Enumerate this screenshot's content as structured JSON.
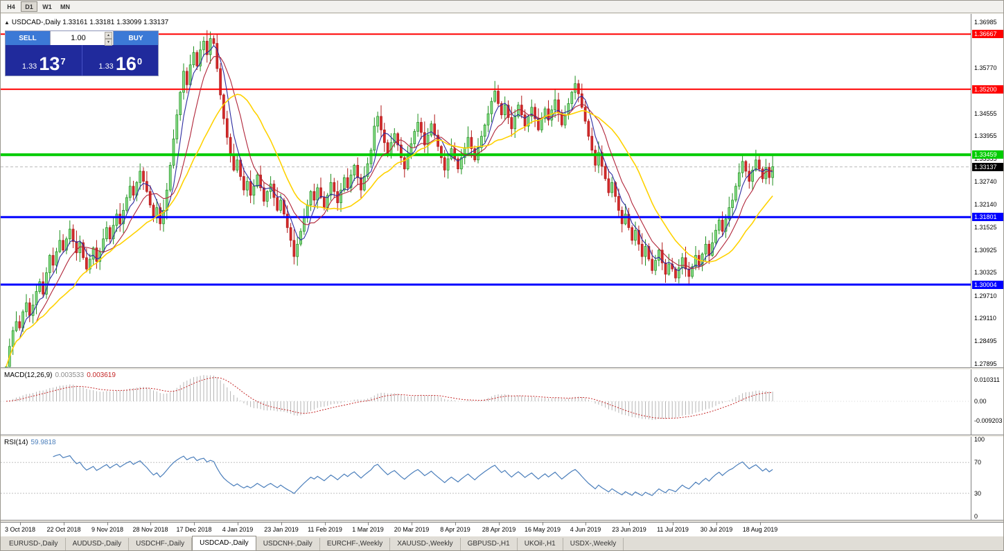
{
  "toolbar": {
    "timeframes": [
      {
        "label": "H4",
        "active": false
      },
      {
        "label": "D1",
        "active": true
      },
      {
        "label": "W1",
        "active": false
      },
      {
        "label": "MN",
        "active": false
      }
    ]
  },
  "chart": {
    "header_text": "USDCAD-,Daily  1.33161 1.33181 1.33099 1.33137",
    "toggle_icon": "▲"
  },
  "trade_widget": {
    "sell_label": "SELL",
    "buy_label": "BUY",
    "volume": "1.00",
    "sell_price": {
      "prefix": "1.33",
      "pips": "13",
      "sup": "7"
    },
    "buy_price": {
      "prefix": "1.33",
      "pips": "16",
      "sup": "0"
    }
  },
  "colors": {
    "candle_up": "#84d984",
    "candle_up_border": "#1d8f1d",
    "candle_down": "#d42b2b",
    "candle_down_border": "#b01818",
    "ma_fast": "#2b2ba0",
    "ma_mid": "#b02438",
    "ma_slow": "#ffd200",
    "macd_hist": "#b4b4b4",
    "macd_signal": "#c42525",
    "rsi_line": "#4a7ebb",
    "hline_red": "#ff0000",
    "hline_green": "#00cc00",
    "hline_blue": "#0000ff",
    "current_price_label": "#000000",
    "trade_button": "#3c79d6",
    "price_box": "#202a9c"
  },
  "chart_data": {
    "type": "candlestick",
    "symbol": "USDCAD-",
    "timeframe": "Daily",
    "current_ohlc": {
      "open": "1.33161",
      "high": "1.33181",
      "low": "1.33099",
      "close": "1.33137"
    },
    "price_axis_ticks": [
      "1.36985",
      "1.35770",
      "1.34555",
      "1.33955",
      "1.33355",
      "1.32740",
      "1.32140",
      "1.31525",
      "1.30925",
      "1.30325",
      "1.29710",
      "1.29110",
      "1.28495",
      "1.27895"
    ],
    "price_markers": [
      {
        "value": "1.36667",
        "type": "hline",
        "color": "#ff0000",
        "width": 2
      },
      {
        "value": "1.35200",
        "type": "hline",
        "color": "#ff0000",
        "width": 2
      },
      {
        "value": "1.33459",
        "type": "hline",
        "color": "#00cc00",
        "width": 4
      },
      {
        "value": "1.33137",
        "type": "current-price",
        "color": "#000000",
        "width": 1
      },
      {
        "value": "1.31801",
        "type": "hline",
        "color": "#0000ff",
        "width": 3
      },
      {
        "value": "1.30004",
        "type": "hline",
        "color": "#0000ff",
        "width": 3
      }
    ],
    "date_labels": [
      "3 Oct 2018",
      "22 Oct 2018",
      "9 Nov 2018",
      "28 Nov 2018",
      "17 Dec 2018",
      "4 Jan 2019",
      "23 Jan 2019",
      "11 Feb 2019",
      "1 Mar 2019",
      "20 Mar 2019",
      "8 Apr 2019",
      "28 Apr 2019",
      "16 May 2019",
      "4 Jun 2019",
      "23 Jun 2019",
      "11 Jul 2019",
      "30 Jul 2019",
      "18 Aug 2019"
    ],
    "visible_price_range": {
      "min": 1.27895,
      "max": 1.36985
    },
    "first_open": 1.276,
    "closes": [
      1.2782,
      1.2836,
      1.2878,
      1.2902,
      1.2885,
      1.2928,
      1.2952,
      1.2918,
      1.2946,
      1.2982,
      1.3008,
      1.2975,
      1.3032,
      1.3078,
      1.3052,
      1.3088,
      1.3118,
      1.3092,
      1.3122,
      1.3148,
      1.3115,
      1.3085,
      1.3112,
      1.3072,
      1.3042,
      1.3068,
      1.3098,
      1.3062,
      1.3088,
      1.3122,
      1.3152,
      1.3122,
      1.3158,
      1.3188,
      1.3162,
      1.3198,
      1.3232,
      1.3262,
      1.3238,
      1.3272,
      1.3302,
      1.3275,
      1.3248,
      1.3212,
      1.3178,
      1.3205,
      1.3162,
      1.3198,
      1.3252,
      1.3318,
      1.3388,
      1.3452,
      1.3512,
      1.3568,
      1.3532,
      1.3585,
      1.3618,
      1.3582,
      1.3625,
      1.3648,
      1.3612,
      1.3655,
      1.3642,
      1.3575,
      1.3505,
      1.3442,
      1.3392,
      1.3348,
      1.3305,
      1.3332,
      1.3288,
      1.3252,
      1.3275,
      1.3238,
      1.3262,
      1.3292,
      1.3258,
      1.3222,
      1.3248,
      1.3268,
      1.3232,
      1.3198,
      1.3225,
      1.3188,
      1.3152,
      1.3118,
      1.3075,
      1.3108,
      1.3142,
      1.3178,
      1.3212,
      1.3248,
      1.3225,
      1.3258,
      1.3232,
      1.3205,
      1.3238,
      1.3272,
      1.3248,
      1.3218,
      1.3252,
      1.3285,
      1.3258,
      1.3292,
      1.3318,
      1.3285,
      1.3252,
      1.3288,
      1.3322,
      1.3358,
      1.3422,
      1.3448,
      1.3412,
      1.3378,
      1.3345,
      1.3378,
      1.3402,
      1.3372,
      1.3338,
      1.3308,
      1.3342,
      1.3375,
      1.3408,
      1.3432,
      1.3405,
      1.3372,
      1.3398,
      1.3428,
      1.3398,
      1.3368,
      1.3338,
      1.3305,
      1.3335,
      1.3362,
      1.3335,
      1.3308,
      1.3338,
      1.3365,
      1.3392,
      1.3362,
      1.3332,
      1.3365,
      1.3395,
      1.3425,
      1.3455,
      1.3488,
      1.3515,
      1.3482,
      1.3452,
      1.3478,
      1.3445,
      1.3415,
      1.3448,
      1.3478,
      1.3452,
      1.3422,
      1.3448,
      1.3472,
      1.3442,
      1.3412,
      1.3442,
      1.3468,
      1.3438,
      1.3465,
      1.3492,
      1.3458,
      1.3425,
      1.3452,
      1.3482,
      1.3512,
      1.3535,
      1.3508,
      1.3472,
      1.3435,
      1.3395,
      1.3358,
      1.3318,
      1.3352,
      1.3315,
      1.3282,
      1.3245,
      1.3272,
      1.3235,
      1.3198,
      1.3162,
      1.3188,
      1.3152,
      1.3118,
      1.3145,
      1.3108,
      1.3075,
      1.3102,
      1.3068,
      1.3038,
      1.3065,
      1.3092,
      1.3058,
      1.3028,
      1.3055,
      1.3042,
      1.3018,
      1.3045,
      1.3072,
      1.3042,
      1.3022,
      1.3048,
      1.3078,
      1.3052,
      1.3082,
      1.3108,
      1.3078,
      1.3112,
      1.3145,
      1.3172,
      1.3142,
      1.3175,
      1.3205,
      1.3225,
      1.3262,
      1.3298,
      1.3328,
      1.3302,
      1.3275,
      1.3305,
      1.3332,
      1.3308,
      1.3282,
      1.3312,
      1.3285,
      1.3314
    ],
    "moving_averages": [
      {
        "period": 5,
        "color": "#2b2ba0"
      },
      {
        "period": 10,
        "color": "#b02438"
      },
      {
        "period": 21,
        "color": "#ffd200"
      }
    ],
    "macd": {
      "label": "MACD(12,26,9)",
      "value1": "0.003533",
      "value2": "0.003619",
      "axis_ticks": [
        "0.010311",
        "0.00",
        "-0.009203"
      ]
    },
    "rsi": {
      "label": "RSI(14)",
      "value": "59.9818",
      "axis_ticks": [
        "100",
        "70",
        "30",
        "0"
      ],
      "levels": [
        70,
        30
      ]
    }
  },
  "tabs": [
    {
      "label": "EURUSD-,Daily",
      "active": false
    },
    {
      "label": "AUDUSD-,Daily",
      "active": false
    },
    {
      "label": "USDCHF-,Daily",
      "active": false
    },
    {
      "label": "USDCAD-,Daily",
      "active": true
    },
    {
      "label": "USDCNH-,Daily",
      "active": false
    },
    {
      "label": "EURCHF-,Weekly",
      "active": false
    },
    {
      "label": "XAUUSD-,Weekly",
      "active": false
    },
    {
      "label": "GBPUSD-,H1",
      "active": false
    },
    {
      "label": "UKOil-,H1",
      "active": false
    },
    {
      "label": "USDX-,Weekly",
      "active": false
    }
  ]
}
